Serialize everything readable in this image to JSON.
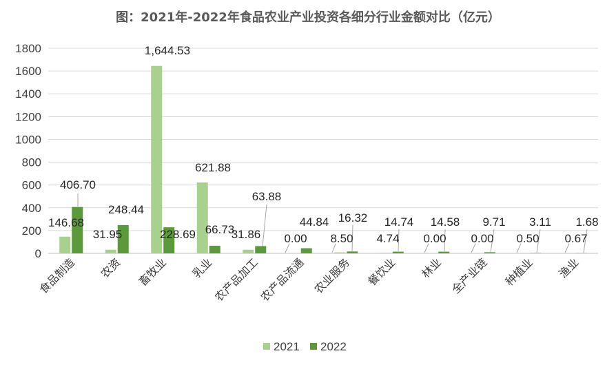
{
  "chart_data": {
    "type": "bar",
    "title": "图：2021年-2022年食品农业产业投资各细分行业金额对比（亿元）",
    "xlabel": "",
    "ylabel": "",
    "ylim": [
      0,
      1800
    ],
    "yticks": [
      0,
      200,
      400,
      600,
      800,
      1000,
      1200,
      1400,
      1600,
      1800
    ],
    "grid": true,
    "legend_position": "bottom",
    "categories": [
      "食品制造",
      "农资",
      "畜牧业",
      "乳业",
      "农产品加工",
      "农产品流通",
      "农业服务",
      "餐饮业",
      "林业",
      "全产业链",
      "种植业",
      "渔业"
    ],
    "series": [
      {
        "name": "2021",
        "color": "#a9d18e",
        "values": [
          146.68,
          31.95,
          1644.53,
          621.88,
          31.86,
          0.0,
          8.5,
          4.74,
          0.0,
          0.0,
          0.5,
          0.67
        ],
        "labels": [
          "146.68",
          "31.95",
          "1,644.53",
          "621.88",
          "31.86",
          "0.00",
          "8.50",
          "4.74",
          "0.00",
          "0.00",
          "0.50",
          "0.67"
        ]
      },
      {
        "name": "2022",
        "color": "#5a9a3a",
        "values": [
          406.7,
          248.44,
          228.69,
          66.73,
          63.88,
          44.84,
          16.32,
          14.74,
          14.58,
          9.71,
          3.11,
          1.68
        ],
        "labels": [
          "406.70",
          "248.44",
          "228.69",
          "66.73",
          "63.88",
          "44.84",
          "16.32",
          "14.74",
          "14.58",
          "9.71",
          "3.11",
          "1.68"
        ]
      }
    ]
  }
}
